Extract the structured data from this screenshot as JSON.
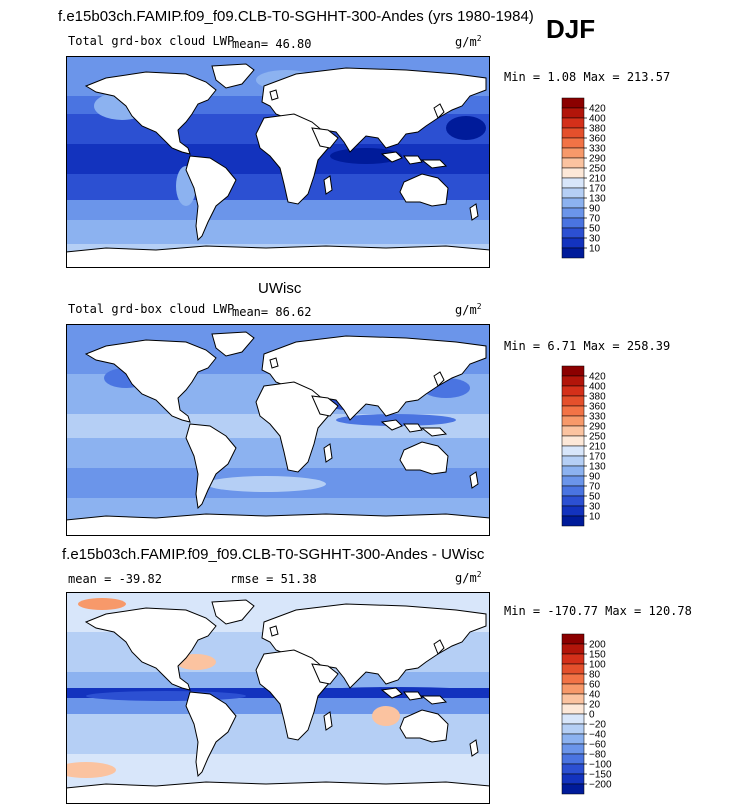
{
  "season": "DJF",
  "panels": [
    {
      "title": "f.e15b03ch.FAMIP.f09_f09.CLB-T0-SGHHT-300-Andes (yrs 1980-1984)",
      "field_label": "Total grd-box cloud LWP",
      "mean_text": "mean=  46.80",
      "units_base": "g/m",
      "units_exp": "2",
      "minmax_text": "Min =   1.08 Max = 213.57",
      "palette": "blues",
      "pattern": "model",
      "colorbar": {
        "labels": [
          "420",
          "400",
          "380",
          "360",
          "330",
          "290",
          "250",
          "210",
          "170",
          "130",
          "90",
          "70",
          "50",
          "30",
          "10"
        ],
        "colors": [
          "#8b0000",
          "#b2150a",
          "#d4301a",
          "#e4502c",
          "#f27346",
          "#f7996a",
          "#fbc3a0",
          "#fde8d8",
          "#d8e6fa",
          "#b5cff5",
          "#8cb2f0",
          "#6b95ea",
          "#4a74e1",
          "#2c50d2",
          "#1333be",
          "#001b9a"
        ]
      }
    },
    {
      "title": "UWisc",
      "field_label": "Total grd-box cloud LWP",
      "mean_text": "mean=  86.62",
      "units_base": "g/m",
      "units_exp": "2",
      "minmax_text": "Min =   6.71 Max = 258.39",
      "palette": "blues",
      "pattern": "obs",
      "colorbar": {
        "labels": [
          "420",
          "400",
          "380",
          "360",
          "330",
          "290",
          "250",
          "210",
          "170",
          "130",
          "90",
          "70",
          "50",
          "30",
          "10"
        ],
        "colors": [
          "#8b0000",
          "#b2150a",
          "#d4301a",
          "#e4502c",
          "#f27346",
          "#f7996a",
          "#fbc3a0",
          "#fde8d8",
          "#d8e6fa",
          "#b5cff5",
          "#8cb2f0",
          "#6b95ea",
          "#4a74e1",
          "#2c50d2",
          "#1333be",
          "#001b9a"
        ]
      }
    },
    {
      "title": "f.e15b03ch.FAMIP.f09_f09.CLB-T0-SGHHT-300-Andes - UWisc",
      "field_label": "mean = -39.82",
      "mean_text": "rmse =  51.38",
      "units_base": "g/m",
      "units_exp": "2",
      "minmax_text": "Min = -170.77 Max = 120.78",
      "palette": "diff",
      "pattern": "diff",
      "colorbar": {
        "labels": [
          "200",
          "150",
          "100",
          "80",
          "60",
          "40",
          "20",
          "0",
          "−20",
          "−40",
          "−60",
          "−80",
          "−100",
          "−150",
          "−200"
        ],
        "colors": [
          "#8b0000",
          "#b2150a",
          "#d4301a",
          "#e4502c",
          "#f27346",
          "#f7996a",
          "#fbc3a0",
          "#fde8d8",
          "#d8e6fa",
          "#b5cff5",
          "#8cb2f0",
          "#6b95ea",
          "#4a74e1",
          "#2c50d2",
          "#1333be",
          "#001b9a"
        ]
      }
    }
  ],
  "chart_data": [
    {
      "type": "heatmap",
      "title": "f.e15b03ch.FAMIP.f09_f09.CLB-T0-SGHHT-300-Andes (yrs 1980-1984)",
      "variable": "Total grd-box cloud LWP",
      "units": "g/m2",
      "mean": 46.8,
      "min": 1.08,
      "max": 213.57,
      "contour_levels": [
        10,
        30,
        50,
        70,
        90,
        130,
        170,
        210,
        250,
        290,
        330,
        360,
        380,
        400,
        420
      ],
      "projection": "cylindrical equidistant, global"
    },
    {
      "type": "heatmap",
      "title": "UWisc",
      "variable": "Total grd-box cloud LWP",
      "units": "g/m2",
      "mean": 86.62,
      "min": 6.71,
      "max": 258.39,
      "contour_levels": [
        10,
        30,
        50,
        70,
        90,
        130,
        170,
        210,
        250,
        290,
        330,
        360,
        380,
        400,
        420
      ],
      "projection": "cylindrical equidistant, global"
    },
    {
      "type": "heatmap",
      "title": "f.e15b03ch.FAMIP.f09_f09.CLB-T0-SGHHT-300-Andes - UWisc",
      "units": "g/m2",
      "mean": -39.82,
      "rmse": 51.38,
      "min": -170.77,
      "max": 120.78,
      "contour_levels": [
        -200,
        -150,
        -100,
        -80,
        -60,
        -40,
        -20,
        0,
        20,
        40,
        60,
        80,
        100,
        150,
        200
      ],
      "projection": "cylindrical equidistant, global"
    }
  ]
}
